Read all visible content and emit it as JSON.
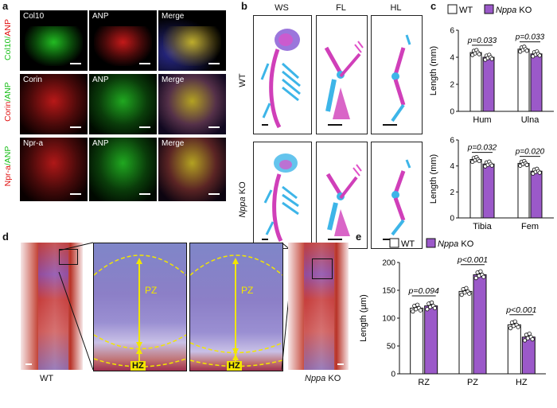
{
  "panel_labels": {
    "a": "a",
    "b": "b",
    "c": "c",
    "d": "d",
    "e": "e"
  },
  "panel_a": {
    "rows": [
      {
        "side_label_green": "Col10",
        "side_label_sep": "/",
        "side_label_red": "ANP",
        "tiles": [
          "Col10",
          "ANP",
          "Merge"
        ],
        "colors": [
          "#2bd62b",
          "#e02020",
          "#c7a030"
        ]
      },
      {
        "side_label_green": "Corin",
        "side_label_sep": "/",
        "side_label_red": "ANP",
        "tiles": [
          "Corin",
          "ANP",
          "Merge"
        ],
        "colors": [
          "#e02020",
          "#2bd62b",
          "#c7a030"
        ]
      },
      {
        "side_label_green": "Npr-a",
        "side_label_sep": "/",
        "side_label_red": "ANP",
        "tiles": [
          "Npr-a",
          "ANP",
          "Merge"
        ],
        "colors": [
          "#e02020",
          "#2bd62b",
          "#c7a030"
        ]
      }
    ]
  },
  "panel_b": {
    "columns": [
      "WS",
      "FL",
      "HL"
    ],
    "rows": [
      {
        "label": "WT",
        "italic_part": "",
        "rest": "WT"
      },
      {
        "label": "Nppa KO",
        "italic_part": "Nppa",
        "rest": " KO"
      }
    ]
  },
  "legend": {
    "wt": "WT",
    "ko_italic": "Nppa",
    "ko_rest": " KO"
  },
  "colors": {
    "wt_fill": "#ffffff",
    "ko_fill": "#9b59c9",
    "bar_stroke": "#111111",
    "highlight_yellow": "#f2e600"
  },
  "panel_d": {
    "left_label": "WT",
    "right_label_italic": "Nppa",
    "right_label_rest": " KO",
    "zones": [
      "PZ",
      "HZ"
    ]
  },
  "chart_data": [
    {
      "type": "bar",
      "panel": "c",
      "ylabel": "Length (mm)",
      "ylim": [
        0,
        6
      ],
      "yticks": [
        0,
        2,
        4,
        6
      ],
      "categories": [
        "Hum",
        "Ulna"
      ],
      "series": [
        {
          "name": "WT",
          "values": [
            4.35,
            4.6
          ]
        },
        {
          "name": "Nppa KO",
          "values": [
            4.0,
            4.25
          ]
        }
      ],
      "annotations": [
        "p=0.033",
        "p=0.033"
      ]
    },
    {
      "type": "bar",
      "panel": "c",
      "ylabel": "Length (mm)",
      "ylim": [
        0,
        6
      ],
      "yticks": [
        0,
        2,
        4,
        6
      ],
      "categories": [
        "Tibia",
        "Fem"
      ],
      "series": [
        {
          "name": "WT",
          "values": [
            4.5,
            4.2
          ]
        },
        {
          "name": "Nppa KO",
          "values": [
            4.15,
            3.6
          ]
        }
      ],
      "annotations": [
        "p=0.032",
        "p=0.020"
      ]
    },
    {
      "type": "bar",
      "panel": "e",
      "ylabel": "Length (µm)",
      "ylim": [
        0,
        200
      ],
      "yticks": [
        0,
        50,
        100,
        150,
        200
      ],
      "categories": [
        "RZ",
        "PZ",
        "HZ"
      ],
      "series": [
        {
          "name": "WT",
          "values": [
            118,
            148,
            88
          ]
        },
        {
          "name": "Nppa KO",
          "values": [
            122,
            178,
            66
          ]
        }
      ],
      "annotations": [
        "p=0.094",
        "p<0.001",
        "p<0.001"
      ]
    }
  ]
}
